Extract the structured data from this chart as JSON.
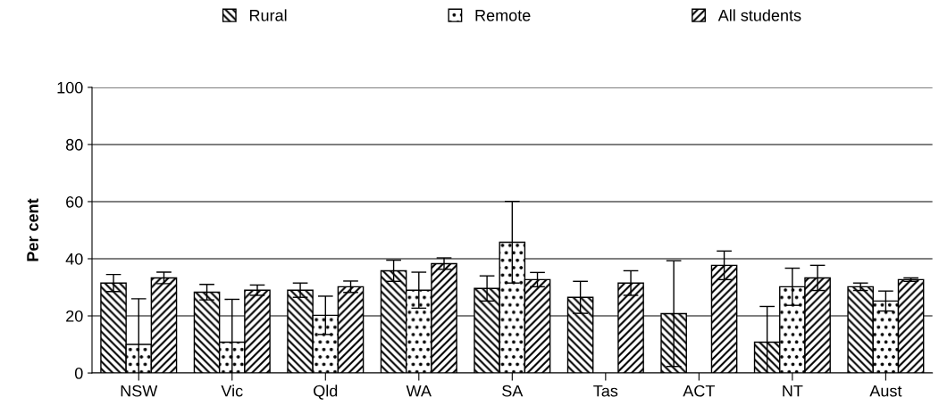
{
  "chart_data": {
    "type": "bar",
    "ylabel": "Per cent",
    "categories": [
      "NSW",
      "Vic",
      "Qld",
      "WA",
      "SA",
      "Tas",
      "ACT",
      "NT",
      "Aust"
    ],
    "series": [
      {
        "name": "Rural",
        "color": "#000000",
        "values": [
          31.5,
          28.3,
          29,
          35.8,
          29.6,
          26.5,
          20.8,
          10.8,
          30.2
        ],
        "errors": [
          3,
          2.7,
          2.5,
          3.7,
          4.4,
          5.6,
          18.5,
          12.5,
          1.3
        ]
      },
      {
        "name": "Remote",
        "color": "#000000",
        "values": [
          10,
          10.8,
          20.2,
          29,
          45.8,
          null,
          null,
          30.2,
          25.2
        ],
        "errors": [
          16,
          15,
          6.7,
          6.3,
          14.3,
          null,
          null,
          6.5,
          3.5
        ]
      },
      {
        "name": "All students",
        "color": "#000000",
        "values": [
          33.3,
          29,
          30.2,
          38.3,
          32.7,
          31.5,
          37.7,
          33.3,
          32.7
        ],
        "errors": [
          2,
          1.8,
          2,
          2,
          2.5,
          4.3,
          5,
          4.4,
          0.6
        ]
      }
    ],
    "ylim": [
      0,
      100
    ],
    "yticks": [
      0,
      20,
      40,
      60,
      80,
      100
    ],
    "grid": "y",
    "legend": "top"
  }
}
